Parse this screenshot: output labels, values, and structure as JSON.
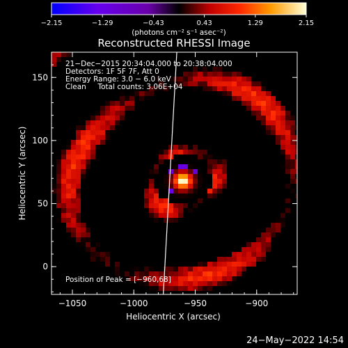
{
  "chart_data": {
    "type": "heatmap",
    "title": "Reconstructed RHESSI Image",
    "xlabel": "Heliocentric X (arcsec)",
    "ylabel": "Heliocentric Y (arcsec)",
    "xlim": [
      -1067,
      -867
    ],
    "ylim": [
      -22,
      170
    ],
    "x_ticks": [
      -1050,
      -1000,
      -950,
      -900
    ],
    "x_tick_labels": [
      "−1050",
      "−1000",
      "−950",
      "−900"
    ],
    "y_ticks": [
      0,
      50,
      100,
      150
    ],
    "y_tick_labels": [
      "0",
      "50",
      "100",
      "150"
    ],
    "colorbar": {
      "min": -2.15,
      "max": 2.15,
      "tick_values": [
        -2.15,
        -1.29,
        -0.43,
        0.43,
        1.29,
        2.15
      ],
      "tick_labels": [
        "−2.15",
        "−1.29",
        "−0.43",
        "0.43",
        "1.29",
        "2.15"
      ],
      "unit_label": "(photons cm⁻² s⁻¹ asec⁻²)"
    },
    "peak": {
      "x": -960,
      "y": 68
    },
    "limb_line": {
      "x_top": -965,
      "x_bottom": -976
    },
    "annotations": [
      "21−Dec−2015 20:34:04.000 to 20:38:04.000",
      "Detectors: 1F 5F 7F, Att 0",
      "Energy Range: 3.0 − 6.0 keV",
      "Clean     Total counts: 3.06E+04"
    ],
    "peak_label": "Position of Peak = [−960,68]"
  },
  "footer": {
    "timestamp": "24−May−2022 14:54"
  },
  "colors": {
    "background": "#000000",
    "foreground": "#ffffff"
  }
}
